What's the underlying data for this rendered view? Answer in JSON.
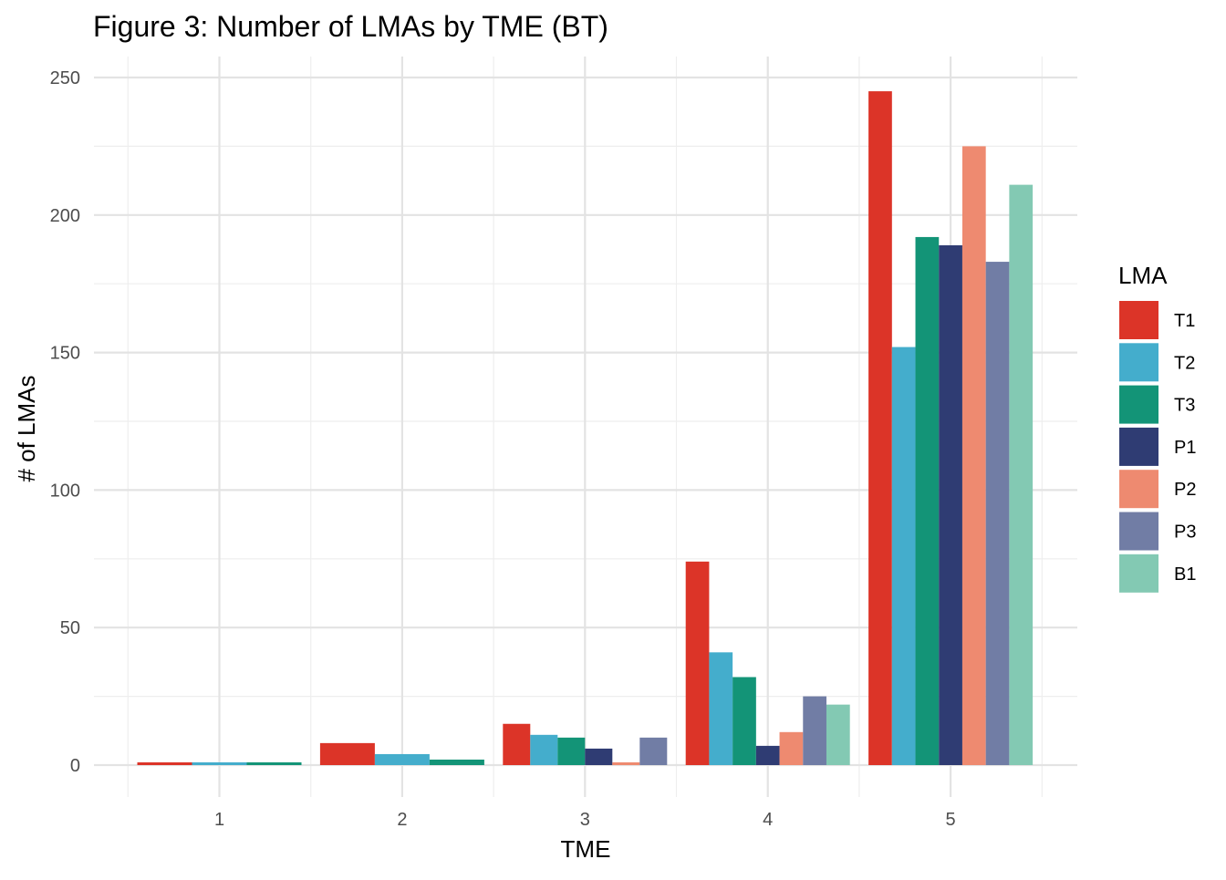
{
  "chart_data": {
    "type": "bar",
    "title": "Figure 3: Number of LMAs by TME (BT)",
    "xlabel": "TME",
    "ylabel": "# of LMAs",
    "categories": [
      "1",
      "2",
      "3",
      "4",
      "5"
    ],
    "ylim": [
      0,
      250
    ],
    "yticks": [
      0,
      50,
      100,
      150,
      200,
      250
    ],
    "grid": true,
    "legend": {
      "title": "LMA",
      "position": "right"
    },
    "series": [
      {
        "name": "T1",
        "color": "#DC3428",
        "values": [
          1,
          8,
          15,
          74,
          245
        ]
      },
      {
        "name": "T2",
        "color": "#44ADCC",
        "values": [
          1,
          4,
          11,
          41,
          152
        ]
      },
      {
        "name": "T3",
        "color": "#139477",
        "values": [
          1,
          2,
          10,
          32,
          192
        ]
      },
      {
        "name": "P1",
        "color": "#2F3C73",
        "values": [
          0,
          0,
          6,
          7,
          189
        ]
      },
      {
        "name": "P2",
        "color": "#EE8A70",
        "values": [
          0,
          0,
          1,
          12,
          225
        ]
      },
      {
        "name": "P3",
        "color": "#717DA5",
        "values": [
          0,
          0,
          10,
          25,
          183
        ]
      },
      {
        "name": "B1",
        "color": "#83C9B3",
        "values": [
          0,
          0,
          0,
          22,
          211
        ]
      }
    ]
  }
}
